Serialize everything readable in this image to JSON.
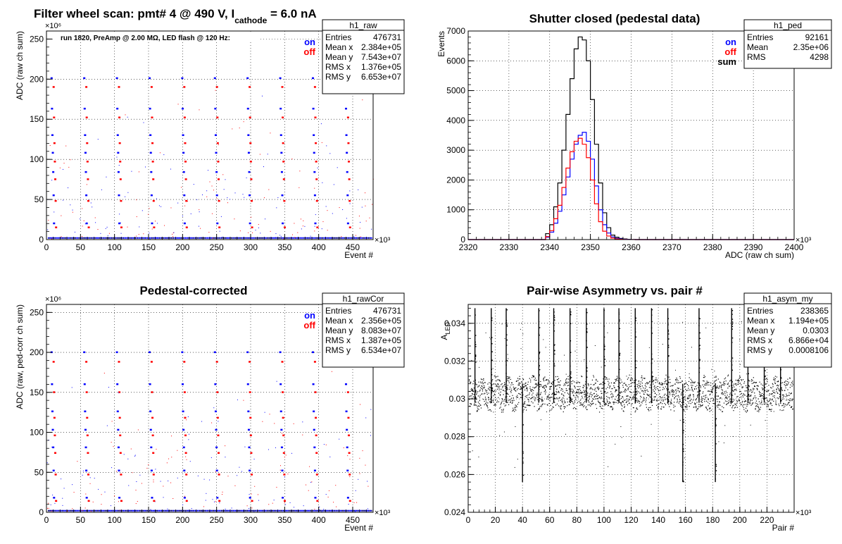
{
  "chart_data": [
    {
      "id": "raw",
      "type": "scatter",
      "title_main": "Filter wheel scan: pmt#   4 @   490 V, I",
      "title_sub": "cathode",
      "title_tail": " = 6.0 nA",
      "annotation": "run 1820, PreAmp @ 2.00 MΩ, LED flash @  120 Hz:",
      "xlabel": "Event #",
      "ylabel": "ADC (raw ch sum)",
      "x_multiplier": "×10³",
      "y_multiplier": "×10⁶",
      "xlim": [
        0,
        480
      ],
      "ylim": [
        0,
        260
      ],
      "xticks": [
        0,
        50,
        100,
        150,
        200,
        250,
        300,
        350,
        400,
        450
      ],
      "yticks": [
        0,
        50,
        100,
        150,
        200,
        250
      ],
      "grid": true,
      "legend": [
        {
          "label": "on",
          "color": "#0000ff"
        },
        {
          "label": "off",
          "color": "#ff0000"
        }
      ],
      "stats": {
        "name": "h1_raw",
        "rows": [
          [
            "Entries",
            "476731"
          ],
          [
            "Mean x",
            "2.384e+05"
          ],
          [
            "Mean y",
            "7.543e+07"
          ],
          [
            "RMS x",
            "1.376e+05"
          ],
          [
            "RMS y",
            "6.653e+07"
          ]
        ]
      },
      "levels_on": [
        201,
        163,
        130,
        108,
        84,
        55,
        20,
        2
      ],
      "levels_off": [
        190,
        152,
        120,
        97,
        75,
        48,
        15,
        2
      ]
    },
    {
      "id": "ped",
      "type": "line",
      "title_main": "Shutter closed (pedestal data)",
      "xlabel": "ADC (raw ch sum)",
      "ylabel": "Events",
      "x_multiplier": "×10³",
      "xlim": [
        2320,
        2400
      ],
      "ylim": [
        0,
        7000
      ],
      "xticks": [
        2320,
        2330,
        2340,
        2350,
        2360,
        2370,
        2380,
        2390,
        2400
      ],
      "yticks": [
        0,
        1000,
        2000,
        3000,
        4000,
        5000,
        6000,
        7000
      ],
      "grid": true,
      "legend": [
        {
          "label": "on",
          "color": "#0000ff"
        },
        {
          "label": "off",
          "color": "#ff0000"
        },
        {
          "label": "sum",
          "color": "#000000"
        }
      ],
      "stats": {
        "name": "h1_ped",
        "rows": [
          [
            "Entries",
            "92161"
          ],
          [
            "Mean",
            "2.35e+06"
          ],
          [
            "RMS",
            "4298"
          ]
        ]
      },
      "bin_start": 2339,
      "bin_width": 1,
      "series": [
        {
          "name": "sum",
          "color": "#000000",
          "values": [
            200,
            500,
            1100,
            1900,
            3000,
            4200,
            5400,
            6400,
            6800,
            6700,
            6000,
            4700,
            3200,
            1900,
            900,
            400,
            150,
            80,
            40,
            20,
            10,
            5
          ]
        },
        {
          "name": "on",
          "color": "#0000ff",
          "values": [
            80,
            250,
            550,
            950,
            1500,
            2100,
            2700,
            3200,
            3500,
            3600,
            3300,
            2700,
            1800,
            1000,
            500,
            220,
            90,
            40,
            20,
            10,
            5,
            2
          ]
        },
        {
          "name": "off",
          "color": "#ff0000",
          "values": [
            100,
            300,
            700,
            1150,
            1750,
            2400,
            2950,
            3300,
            3400,
            3200,
            2750,
            2000,
            1200,
            600,
            280,
            120,
            50,
            20,
            10,
            5,
            2,
            1
          ]
        }
      ]
    },
    {
      "id": "rawcor",
      "type": "scatter",
      "title_main": "Pedestal-corrected",
      "xlabel": "Event #",
      "ylabel": "ADC (raw, ped-corr ch sum)",
      "x_multiplier": "×10³",
      "y_multiplier": "×10⁶",
      "xlim": [
        0,
        480
      ],
      "ylim": [
        0,
        260
      ],
      "xticks": [
        0,
        50,
        100,
        150,
        200,
        250,
        300,
        350,
        400,
        450
      ],
      "yticks": [
        0,
        50,
        100,
        150,
        200,
        250
      ],
      "grid": true,
      "legend": [
        {
          "label": "on",
          "color": "#0000ff"
        },
        {
          "label": "off",
          "color": "#ff0000"
        }
      ],
      "stats": {
        "name": "h1_rawCor",
        "rows": [
          [
            "Entries",
            "476731"
          ],
          [
            "Mean x",
            "2.356e+05"
          ],
          [
            "Mean y",
            "8.083e+07"
          ],
          [
            "RMS x",
            "1.387e+05"
          ],
          [
            "RMS y",
            "6.534e+07"
          ]
        ]
      },
      "levels_on": [
        200,
        160,
        126,
        103,
        81,
        52,
        18,
        2
      ],
      "levels_off": [
        188,
        150,
        118,
        96,
        74,
        47,
        14,
        2
      ]
    },
    {
      "id": "asym",
      "type": "scatter",
      "title_main": "Pair-wise Asymmetry vs. pair #",
      "ylabel": "A",
      "ylabel_sub": "LED",
      "xlabel": "Pair #",
      "x_multiplier": "×10³",
      "xlim": [
        0,
        240
      ],
      "ylim": [
        0.024,
        0.035
      ],
      "xticks": [
        0,
        20,
        40,
        60,
        80,
        100,
        120,
        140,
        160,
        180,
        200,
        220
      ],
      "yticks": [
        0.024,
        0.026,
        0.028,
        0.03,
        0.032,
        0.034
      ],
      "ytick_labels": [
        "0.024",
        "0.026",
        "0.028",
        "0.03",
        "0.032",
        "0.034"
      ],
      "grid": true,
      "stats": {
        "name": "h1_asym_my",
        "rows": [
          [
            "Entries",
            "238365"
          ],
          [
            "Mean x",
            "1.194e+05"
          ],
          [
            "Mean y",
            "0.0303"
          ],
          [
            "RMS x",
            "6.866e+04"
          ],
          [
            "RMS y",
            "0.0008106"
          ]
        ]
      },
      "center": 0.0303,
      "spikes": [
        5,
        17,
        28,
        40,
        52,
        63,
        75,
        87,
        100,
        111,
        123,
        135,
        147,
        158,
        170,
        182,
        194,
        206,
        218,
        230
      ]
    }
  ]
}
